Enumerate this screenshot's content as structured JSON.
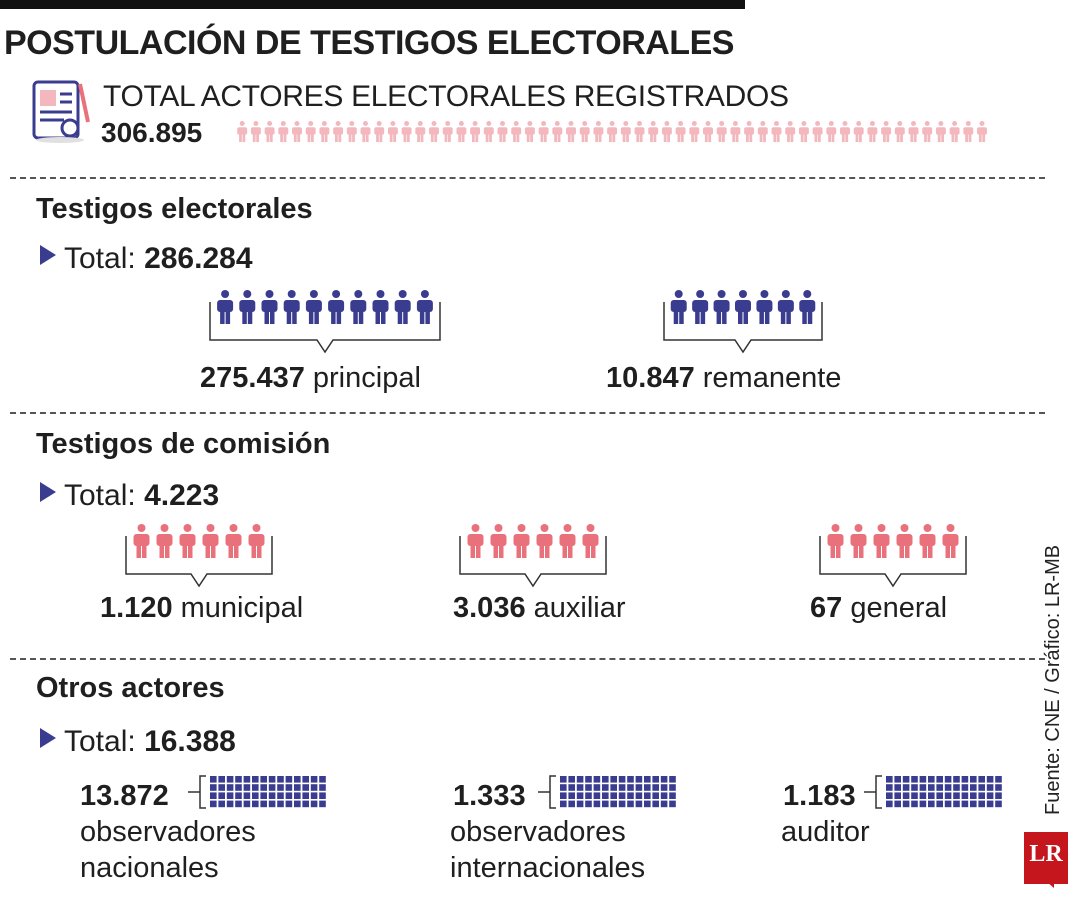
{
  "title": "POSTULACIÓN DE TESTIGOS ELECTORALES",
  "summary": {
    "label": "TOTAL ACTORES ELECTORALES REGISTRADOS",
    "value": "306.895"
  },
  "total_prefix": "Total:",
  "sections": [
    {
      "title": "Testigos electorales",
      "total": "286.284",
      "color": "#3a3d8f",
      "groups": [
        {
          "value": "275.437",
          "label": "principal"
        },
        {
          "value": "10.847",
          "label": "remanente"
        }
      ]
    },
    {
      "title": "Testigos de comisión",
      "total": "4.223",
      "color": "#e8717c",
      "groups": [
        {
          "value": "1.120",
          "label": "municipal"
        },
        {
          "value": "3.036",
          "label": "auxiliar"
        },
        {
          "value": "67",
          "label": "general"
        }
      ]
    },
    {
      "title": "Otros actores",
      "total": "16.388",
      "color": "#3a3d8f",
      "groups": [
        {
          "value": "13.872",
          "label": "observadores nacionales"
        },
        {
          "value": "1.333",
          "label": "observadores internacionales"
        },
        {
          "value": "1.183",
          "label": "auditor"
        }
      ]
    }
  ],
  "source": "Fuente:  CNE / Gráfico: LR-MB",
  "logo": "LR",
  "colors": {
    "people_light": "#f2b8be",
    "accent_blue": "#3a3d8f",
    "accent_pink": "#e8717c",
    "logo_red": "#c4161c"
  }
}
